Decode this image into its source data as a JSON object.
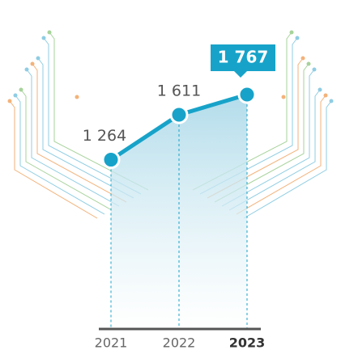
{
  "chart_data": {
    "type": "line",
    "categories": [
      "2021",
      "2022",
      "2023"
    ],
    "values": [
      1264,
      1611,
      1767
    ],
    "value_labels": [
      "1 264",
      "1 611",
      "1 767"
    ],
    "color": "#17a3c9"
  }
}
